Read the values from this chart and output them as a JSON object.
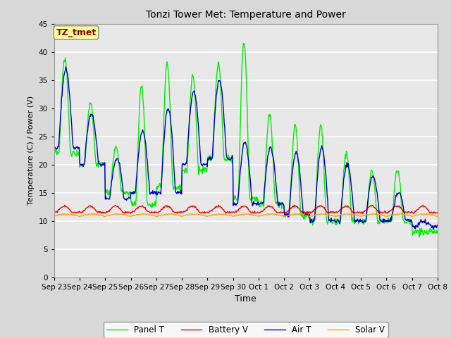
{
  "title": "Tonzi Tower Met: Temperature and Power",
  "xlabel": "Time",
  "ylabel": "Temperature (C) / Power (V)",
  "ylim": [
    0,
    45
  ],
  "yticks": [
    0,
    5,
    10,
    15,
    20,
    25,
    30,
    35,
    40,
    45
  ],
  "annotation_text": "TZ_tmet",
  "annotation_color": "#8B0000",
  "annotation_bg": "#FFFF99",
  "bg_color": "#D8D8D8",
  "plot_bg": "#E8E8E8",
  "grid_color": "white",
  "line_colors": {
    "panel": "#00EE00",
    "battery": "#FF0000",
    "air": "#0000CC",
    "solar": "#FFA500"
  },
  "legend_labels": [
    "Panel T",
    "Battery V",
    "Air T",
    "Solar V"
  ],
  "x_tick_labels": [
    "Sep 23",
    "Sep 24",
    "Sep 25",
    "Sep 26",
    "Sep 27",
    "Sep 28",
    "Sep 29",
    "Sep 30",
    "Oct 1",
    "Oct 2",
    "Oct 3",
    "Oct 4",
    "Oct 5",
    "Oct 6",
    "Oct 7",
    "Oct 8"
  ],
  "panel_peaks": [
    39,
    31,
    23,
    34,
    38,
    36,
    38,
    42,
    29,
    27,
    27,
    22,
    19,
    19,
    8
  ],
  "air_peaks": [
    37,
    29,
    21,
    26,
    30,
    33,
    35,
    24,
    23,
    22,
    23,
    20,
    18,
    15,
    10
  ],
  "panel_mins": [
    22,
    20,
    15,
    13,
    16,
    19,
    21,
    14,
    13,
    11,
    10,
    10,
    10,
    10,
    8
  ],
  "air_mins": [
    23,
    20,
    14,
    15,
    15,
    20,
    21,
    13,
    13,
    11,
    10,
    10,
    10,
    10,
    9
  ],
  "battery_base": 11.5,
  "solar_base": 10.8
}
